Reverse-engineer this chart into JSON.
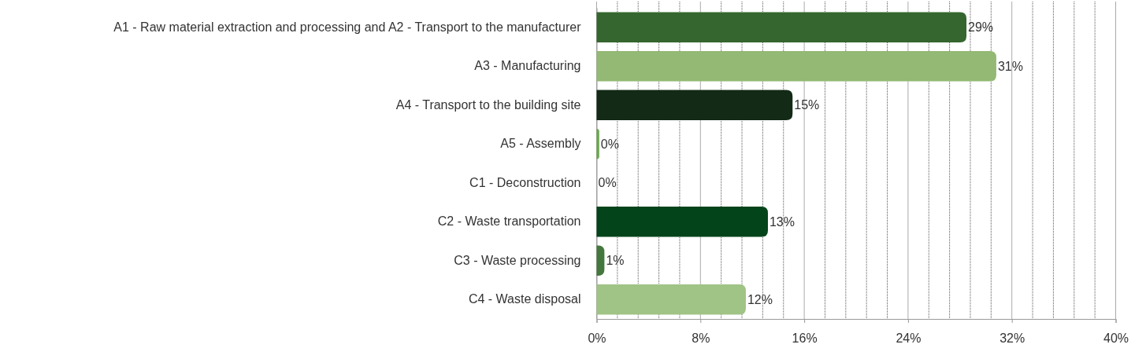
{
  "chart_data": {
    "type": "bar",
    "orientation": "horizontal",
    "categories": [
      "A1 - Raw material extraction and processing and A2 - Transport to the manufacturer",
      "A3 - Manufacturing",
      "A4 - Transport to the building site",
      "A5 - Assembly",
      "C1 - Deconstruction",
      "C2 - Waste transportation",
      "C3 - Waste processing",
      "C4 - Waste disposal"
    ],
    "values": [
      28.5,
      30.8,
      15.1,
      0.2,
      0,
      13.2,
      0.6,
      11.5
    ],
    "value_labels": [
      "29%",
      "31%",
      "15%",
      "0%",
      "0%",
      "13%",
      "1%",
      "12%"
    ],
    "colors": [
      "#35662f",
      "#93b974",
      "#132a16",
      "#6aa84f",
      "#6aa84f",
      "#03441b",
      "#44773d",
      "#a0c386"
    ],
    "xlim": [
      0,
      40
    ],
    "xticks": [
      {
        "value": 0,
        "label": "0%"
      },
      {
        "value": 1.6,
        "label": null
      },
      {
        "value": 3.2,
        "label": null
      },
      {
        "value": 4.8,
        "label": null
      },
      {
        "value": 6.4,
        "label": null
      },
      {
        "value": 8,
        "label": "8%"
      },
      {
        "value": 9.6,
        "label": null
      },
      {
        "value": 11.2,
        "label": null
      },
      {
        "value": 12.8,
        "label": null
      },
      {
        "value": 14.4,
        "label": null
      },
      {
        "value": 16,
        "label": "16%"
      },
      {
        "value": 17.6,
        "label": null
      },
      {
        "value": 19.2,
        "label": null
      },
      {
        "value": 20.8,
        "label": null
      },
      {
        "value": 22.4,
        "label": null
      },
      {
        "value": 24,
        "label": "24%"
      },
      {
        "value": 25.6,
        "label": null
      },
      {
        "value": 27.2,
        "label": null
      },
      {
        "value": 28.8,
        "label": null
      },
      {
        "value": 30.4,
        "label": null
      },
      {
        "value": 32,
        "label": "32%"
      },
      {
        "value": 33.6,
        "label": null
      },
      {
        "value": 35.2,
        "label": null
      },
      {
        "value": 36.8,
        "label": null
      },
      {
        "value": 38.4,
        "label": null
      },
      {
        "value": 40,
        "label": "40%"
      }
    ],
    "grid": "x"
  }
}
